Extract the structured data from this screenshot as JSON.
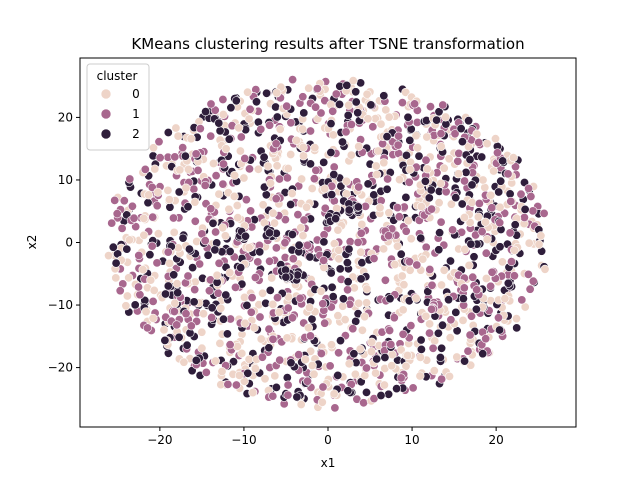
{
  "chart_data": {
    "type": "scatter",
    "title": "KMeans clustering results after TSNE transformation",
    "xlabel": "x1",
    "ylabel": "x2",
    "xlim": [
      -29.5,
      29.5
    ],
    "ylim": [
      -29.5,
      29.5
    ],
    "xticks": [
      -20,
      -10,
      0,
      10,
      20
    ],
    "yticks": [
      -20,
      -10,
      0,
      10,
      20
    ],
    "grid": false,
    "legend": {
      "title": "cluster",
      "placement": "top-left",
      "entries": [
        "0",
        "1",
        "2"
      ]
    },
    "series": [
      {
        "name": "0",
        "color": "#eed4c8",
        "count": 700
      },
      {
        "name": "1",
        "color": "#a8678e",
        "count": 620
      },
      {
        "name": "2",
        "color": "#2f1e3b",
        "count": 560
      }
    ],
    "distribution": {
      "shape": "ellipse",
      "x_extent": [
        -26.5,
        26.5
      ],
      "y_extent": [
        -26.5,
        26.5
      ],
      "tight_clusters": [
        {
          "x": -10.5,
          "y": 1.2,
          "cluster": "2"
        },
        {
          "x": -6.8,
          "y": 1.5,
          "cluster": "2"
        },
        {
          "x": -4.2,
          "y": -5.3,
          "cluster": "2"
        },
        {
          "x": -5.0,
          "y": -5.0,
          "cluster": "2"
        },
        {
          "x": 3.0,
          "y": 5.5,
          "cluster": "2"
        },
        {
          "x": 0.5,
          "y": 4.0,
          "cluster": "2"
        },
        {
          "x": 7.2,
          "y": 1.5,
          "cluster": "1"
        },
        {
          "x": 13.0,
          "y": -10.0,
          "cluster": "1"
        }
      ]
    }
  }
}
